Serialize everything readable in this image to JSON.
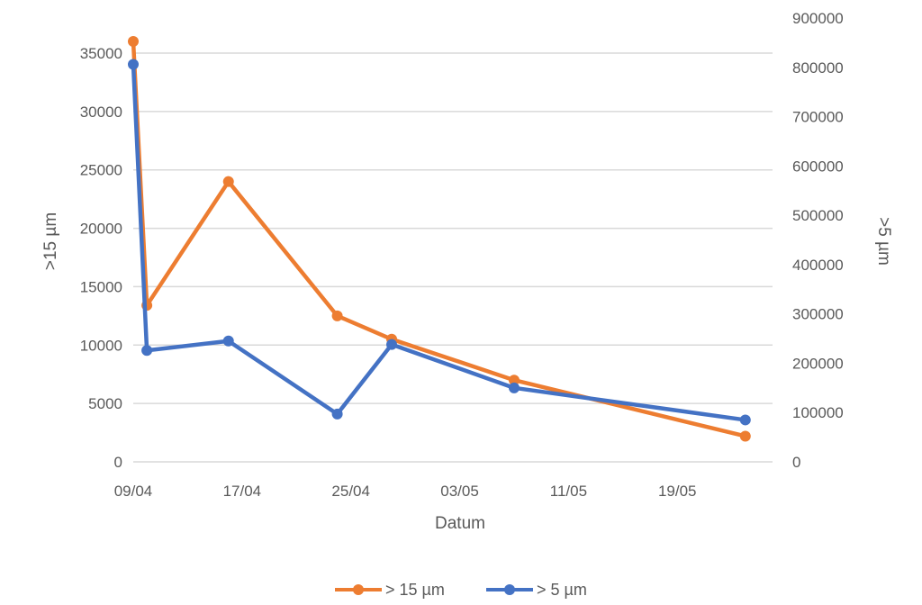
{
  "chart_data": {
    "type": "line",
    "x": [
      "09/04",
      "10/04",
      "16/04",
      "24/04",
      "28/04",
      "07/05",
      "24/05"
    ],
    "series": [
      {
        "name": "> 15 µm",
        "axis": "left",
        "color": "#ED7D31",
        "values": [
          36000,
          13400,
          24000,
          12500,
          10500,
          7000,
          2200
        ]
      },
      {
        "name": "> 5 µm",
        "axis": "right",
        "color": "#4472C4",
        "values": [
          806000,
          226000,
          245000,
          97000,
          238000,
          150000,
          85000
        ]
      }
    ],
    "xlabel": "Datum",
    "ylabel": ">15 µm",
    "y2label": ">5 µm",
    "xticks": [
      "09/04",
      "17/04",
      "25/04",
      "03/05",
      "11/05",
      "19/05"
    ],
    "xlim": [
      "09/04",
      "26/05"
    ],
    "ylim": [
      0,
      35000
    ],
    "y2lim": [
      0,
      900000
    ],
    "yticks": [
      "0",
      "5000",
      "10000",
      "15000",
      "20000",
      "25000",
      "30000",
      "35000"
    ],
    "y2ticks": [
      "0",
      "100000",
      "200000",
      "300000",
      "400000",
      "500000",
      "600000",
      "700000",
      "800000",
      "900000"
    ],
    "grid": true,
    "legend": "bottom"
  }
}
